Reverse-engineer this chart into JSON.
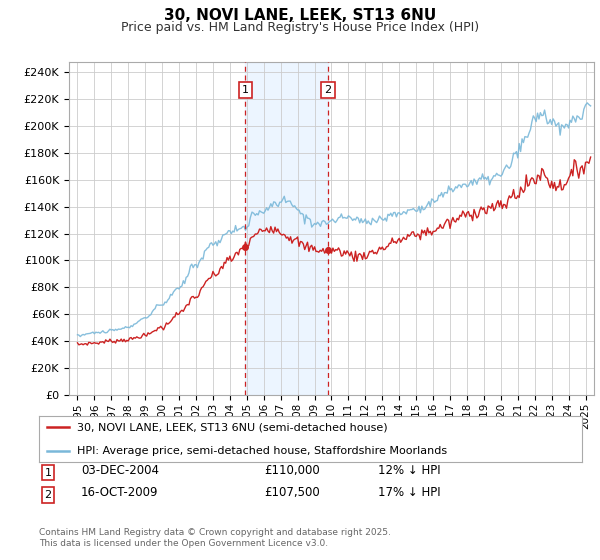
{
  "title": "30, NOVI LANE, LEEK, ST13 6NU",
  "subtitle": "Price paid vs. HM Land Registry's House Price Index (HPI)",
  "ylabel_ticks": [
    "£0",
    "£20K",
    "£40K",
    "£60K",
    "£80K",
    "£100K",
    "£120K",
    "£140K",
    "£160K",
    "£180K",
    "£200K",
    "£220K",
    "£240K"
  ],
  "ylim": [
    0,
    248000
  ],
  "xlim_start": 1994.5,
  "xlim_end": 2025.5,
  "marker1_x": 2004.92,
  "marker2_x": 2009.79,
  "marker1_label": "1",
  "marker2_label": "2",
  "sale1_date": "03-DEC-2004",
  "sale1_price": "£110,000",
  "sale1_hpi": "12% ↓ HPI",
  "sale2_date": "16-OCT-2009",
  "sale2_price": "£107,500",
  "sale2_hpi": "17% ↓ HPI",
  "legend_line1": "30, NOVI LANE, LEEK, ST13 6NU (semi-detached house)",
  "legend_line2": "HPI: Average price, semi-detached house, Staffordshire Moorlands",
  "footer": "Contains HM Land Registry data © Crown copyright and database right 2025.\nThis data is licensed under the Open Government Licence v3.0.",
  "hpi_color": "#7ab8d9",
  "price_color": "#cc2222",
  "bg_color": "#ffffff",
  "grid_color": "#cccccc",
  "shade_color": "#ddeeff"
}
